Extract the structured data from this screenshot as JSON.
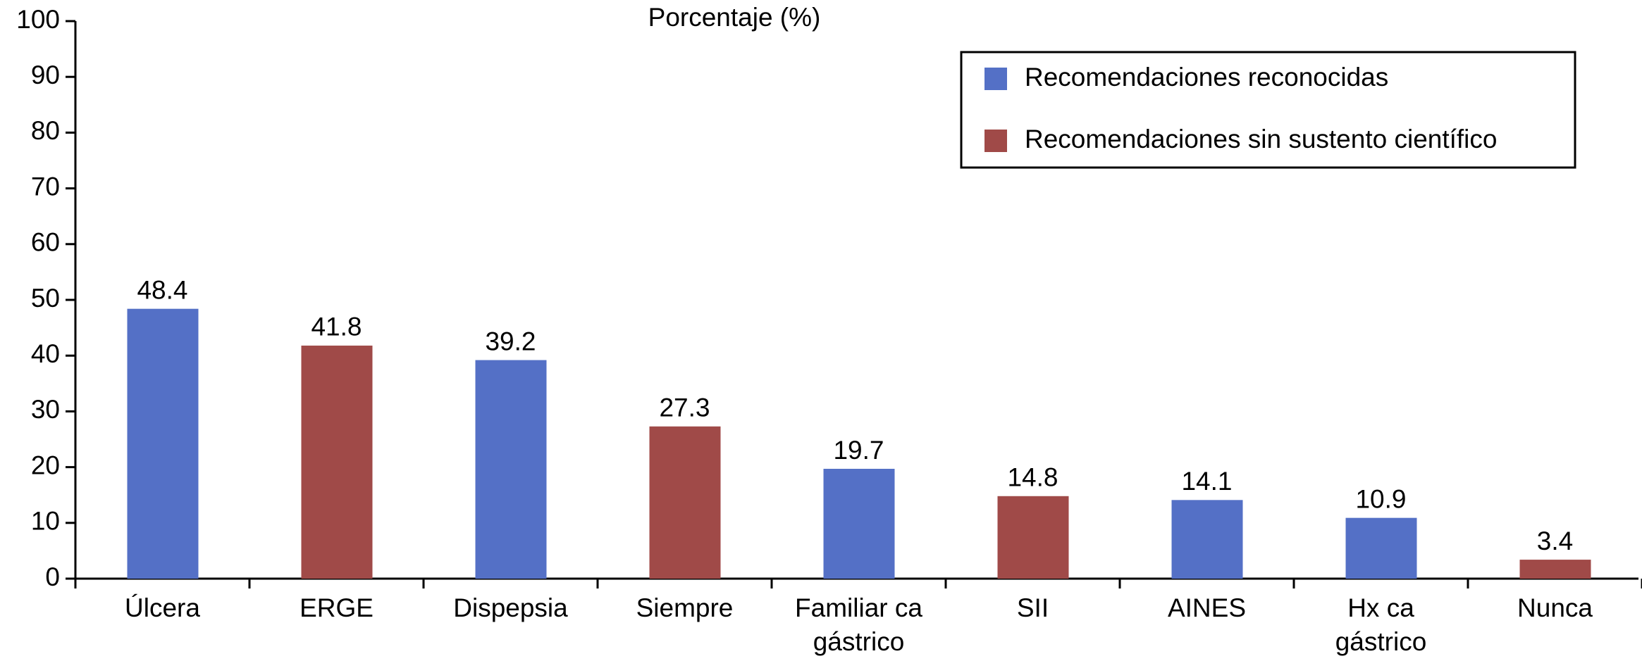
{
  "chart_data": {
    "type": "bar",
    "title": "Porcentaje (%)",
    "categories": [
      "Úlcera",
      "ERGE",
      "Dispepsia",
      "Siempre",
      [
        "Familiar ca",
        "gástrico"
      ],
      "SII",
      "AINES",
      [
        "Hx ca",
        "gástrico"
      ],
      "Nunca"
    ],
    "series": [
      {
        "name": "Recomendaciones reconocidas",
        "color": "#5470c6",
        "values": [
          48.4,
          null,
          39.2,
          null,
          19.7,
          null,
          14.1,
          10.9,
          null
        ]
      },
      {
        "name": "Recomendaciones sin sustento científico",
        "color": "#a04a48",
        "values": [
          null,
          41.8,
          null,
          27.3,
          null,
          14.8,
          null,
          null,
          3.4
        ]
      }
    ],
    "ylim": [
      0,
      100
    ],
    "yticks": [
      0,
      10,
      20,
      30,
      40,
      50,
      60,
      70,
      80,
      90,
      100
    ],
    "grid": false,
    "legend": "top-right"
  }
}
